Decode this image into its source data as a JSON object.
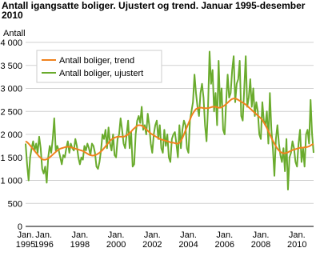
{
  "chart_data": {
    "type": "line",
    "title": "Antall igangsatte boliger. Ujustert og trend. Januar 1995-desember 2010",
    "y_label": "Antall",
    "categories": [
      "Jan. 1995",
      null,
      null,
      null,
      null,
      null,
      null,
      null,
      null,
      null,
      null,
      null,
      "Jan. 1996",
      null,
      null,
      null,
      null,
      null,
      null,
      null,
      null,
      null,
      null,
      null,
      null,
      null,
      null,
      null,
      null,
      null,
      null,
      null,
      null,
      null,
      null,
      null,
      "Jan. 1998",
      null,
      null,
      null,
      null,
      null,
      null,
      null,
      null,
      null,
      null,
      null,
      null,
      null,
      null,
      null,
      null,
      null,
      null,
      null,
      null,
      null,
      null,
      null,
      "Jan. 2000",
      null,
      null,
      null,
      null,
      null,
      null,
      null,
      null,
      null,
      null,
      null,
      null,
      null,
      null,
      null,
      null,
      null,
      null,
      null,
      null,
      null,
      null,
      null,
      "Jan. 2002",
      null,
      null,
      null,
      null,
      null,
      null,
      null,
      null,
      null,
      null,
      null,
      null,
      null,
      null,
      null,
      null,
      null,
      null,
      null,
      null,
      null,
      null,
      null,
      "Jan. 2004",
      null,
      null,
      null,
      null,
      null,
      null,
      null,
      null,
      null,
      null,
      null,
      null,
      null,
      null,
      null,
      null,
      null,
      null,
      null,
      null,
      null,
      null,
      null,
      "Jan. 2006",
      null,
      null,
      null,
      null,
      null,
      null,
      null,
      null,
      null,
      null,
      null,
      null,
      null,
      null,
      null,
      null,
      null,
      null,
      null,
      null,
      null,
      null,
      null,
      "Jan. 2008",
      null,
      null,
      null,
      null,
      null,
      null,
      null,
      null,
      null,
      null,
      null,
      null,
      null,
      null,
      null,
      null,
      null,
      null,
      null,
      null,
      null,
      null,
      null,
      "Jan. 2010",
      null,
      null,
      null,
      null,
      null,
      null,
      null,
      null,
      null,
      null,
      null
    ],
    "series": [
      {
        "name": "Antall boliger, trend",
        "color": "#f0821e",
        "values": [
          1850,
          1830,
          1800,
          1760,
          1720,
          1680,
          1640,
          1600,
          1560,
          1520,
          1490,
          1460,
          1450,
          1450,
          1460,
          1480,
          1500,
          1530,
          1560,
          1590,
          1620,
          1650,
          1670,
          1690,
          1700,
          1710,
          1720,
          1730,
          1730,
          1730,
          1720,
          1710,
          1700,
          1690,
          1680,
          1670,
          1660,
          1650,
          1640,
          1620,
          1600,
          1580,
          1560,
          1550,
          1540,
          1540,
          1550,
          1560,
          1580,
          1600,
          1630,
          1660,
          1700,
          1740,
          1780,
          1820,
          1860,
          1890,
          1910,
          1930,
          1940,
          1950,
          1950,
          1950,
          1950,
          1950,
          1960,
          1980,
          2000,
          2030,
          2060,
          2100,
          2130,
          2160,
          2190,
          2200,
          2200,
          2190,
          2170,
          2140,
          2110,
          2080,
          2050,
          2020,
          2000,
          1980,
          1960,
          1940,
          1920,
          1900,
          1890,
          1880,
          1870,
          1860,
          1850,
          1840,
          1830,
          1820,
          1820,
          1810,
          1800,
          1800,
          1820,
          1860,
          1920,
          2000,
          2080,
          2160,
          2240,
          2320,
          2400,
          2460,
          2510,
          2550,
          2570,
          2580,
          2580,
          2580,
          2570,
          2570,
          2570,
          2570,
          2580,
          2590,
          2600,
          2600,
          2600,
          2590,
          2580,
          2580,
          2590,
          2610,
          2630,
          2660,
          2690,
          2720,
          2750,
          2770,
          2780,
          2780,
          2770,
          2750,
          2730,
          2710,
          2690,
          2670,
          2650,
          2620,
          2590,
          2560,
          2530,
          2500,
          2470,
          2440,
          2410,
          2380,
          2350,
          2310,
          2260,
          2200,
          2140,
          2070,
          2000,
          1930,
          1860,
          1800,
          1740,
          1690,
          1650,
          1620,
          1600,
          1590,
          1590,
          1600,
          1610,
          1630,
          1640,
          1660,
          1670,
          1680,
          1690,
          1700,
          1710,
          1710,
          1710,
          1720,
          1720,
          1730,
          1740,
          1760,
          1780,
          1790
        ]
      },
      {
        "name": "Antall boliger, ujustert",
        "color": "#6aab2d",
        "values": [
          1800,
          1350,
          1000,
          1500,
          1700,
          1850,
          1650,
          1800,
          1600,
          1950,
          1700,
          1250,
          1150,
          1300,
          950,
          1500,
          1750,
          1600,
          1900,
          2350,
          1650,
          1750,
          1650,
          1500,
          1350,
          1550,
          1500,
          1700,
          1850,
          1600,
          1800,
          1700,
          1650,
          1900,
          1750,
          1500,
          1350,
          1500,
          1450,
          1750,
          1650,
          1800,
          1700,
          1550,
          1800,
          1750,
          1600,
          1300,
          1250,
          1400,
          1650,
          2000,
          1900,
          2100,
          1700,
          2150,
          1800,
          1650,
          2000,
          1550,
          1500,
          1900,
          2000,
          2350,
          2100,
          1800,
          1700,
          2000,
          2300,
          1700,
          2050,
          1300,
          1350,
          2000,
          2300,
          2400,
          2250,
          2600,
          2100,
          2200,
          2000,
          2450,
          2200,
          1800,
          1600,
          2000,
          2200,
          2300,
          1900,
          2200,
          1700,
          1600,
          2100,
          1750,
          2000,
          1500,
          1400,
          1900,
          2000,
          2050,
          1800,
          1500,
          2200,
          1700,
          2100,
          2300,
          2200,
          1700,
          1600,
          2300,
          2500,
          2700,
          3300,
          2900,
          2600,
          2400,
          2900,
          3100,
          2800,
          2200,
          1850,
          2600,
          3800,
          3100,
          3400,
          2500,
          2900,
          2200,
          3600,
          2600,
          3000,
          2100,
          2000,
          2700,
          3300,
          2800,
          2900,
          3400,
          3700,
          2700,
          3100,
          3200,
          3600,
          2400,
          2300,
          3000,
          3700,
          2600,
          2800,
          3200,
          2600,
          3000,
          2400,
          2700,
          2500,
          2000,
          1900,
          2700,
          2300,
          2200,
          2500,
          1800,
          2900,
          2100,
          1700,
          1100,
          1900,
          2200,
          1800,
          1550,
          1400,
          1700,
          1200,
          1900,
          800,
          1500,
          1600,
          1850,
          1700,
          1400,
          1300,
          1800,
          2100,
          1400,
          1700,
          1300,
          2000,
          2100,
          1800,
          2750,
          2000,
          1600
        ]
      }
    ],
    "ylim": [
      0,
      4000
    ],
    "yticks": [
      0,
      500,
      {
        "value": 1000,
        "label": "1 000"
      },
      {
        "value": 1500,
        "label": "1 500"
      },
      {
        "value": 2000,
        "label": "2 000"
      },
      {
        "value": 2500,
        "label": "2 500"
      },
      {
        "value": 3000,
        "label": "3 000"
      },
      {
        "value": 3500,
        "label": "3 500"
      },
      {
        "value": 4000,
        "label": "4 000"
      }
    ],
    "grid": true,
    "legend": "upper left"
  }
}
